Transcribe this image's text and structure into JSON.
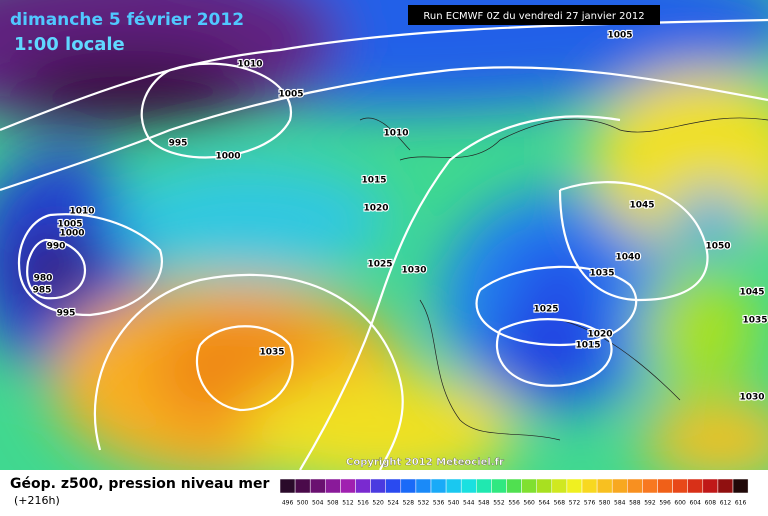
{
  "header": {
    "date": "dimanche 5 février 2012",
    "time": "1:00 locale",
    "run": "Run ECMWF 0Z du vendredi 27 janvier 2012"
  },
  "copyright": "Copyright 2012 Meteociel.fr",
  "footer": {
    "title": "Géop. z500, pression niveau mer",
    "lead": "(+216h)"
  },
  "isobar_labels": [
    1005,
    1010,
    1005,
    995,
    1000,
    1010,
    1015,
    1020,
    1025,
    1030,
    1010,
    1005,
    1000,
    990,
    980,
    985,
    995,
    1035,
    1045,
    1050,
    1040,
    1035,
    1045,
    1035,
    1025,
    1020,
    1015,
    1030
  ],
  "legend": {
    "labels": [
      496,
      500,
      504,
      508,
      512,
      516,
      520,
      524,
      528,
      532,
      536,
      540,
      544,
      548,
      552,
      556,
      560,
      564,
      568,
      572,
      576,
      580,
      584,
      588,
      592,
      596,
      600,
      604,
      608,
      612,
      616
    ],
    "colors": [
      "#2a0a2a",
      "#4a0a4a",
      "#6a1070",
      "#8a1a9a",
      "#a020b0",
      "#7a2ad0",
      "#4a3ae0",
      "#2a4af0",
      "#1a6af8",
      "#1a8af8",
      "#1aaaf8",
      "#1ac8f0",
      "#1ae0e0",
      "#20e8b0",
      "#30e880",
      "#50e050",
      "#80e030",
      "#a8e020",
      "#d0e820",
      "#f0f020",
      "#f8d820",
      "#f8c020",
      "#f8a820",
      "#f89020",
      "#f87820",
      "#f06018",
      "#e84818",
      "#d83018",
      "#c01818",
      "#901010",
      "#200808"
    ]
  }
}
